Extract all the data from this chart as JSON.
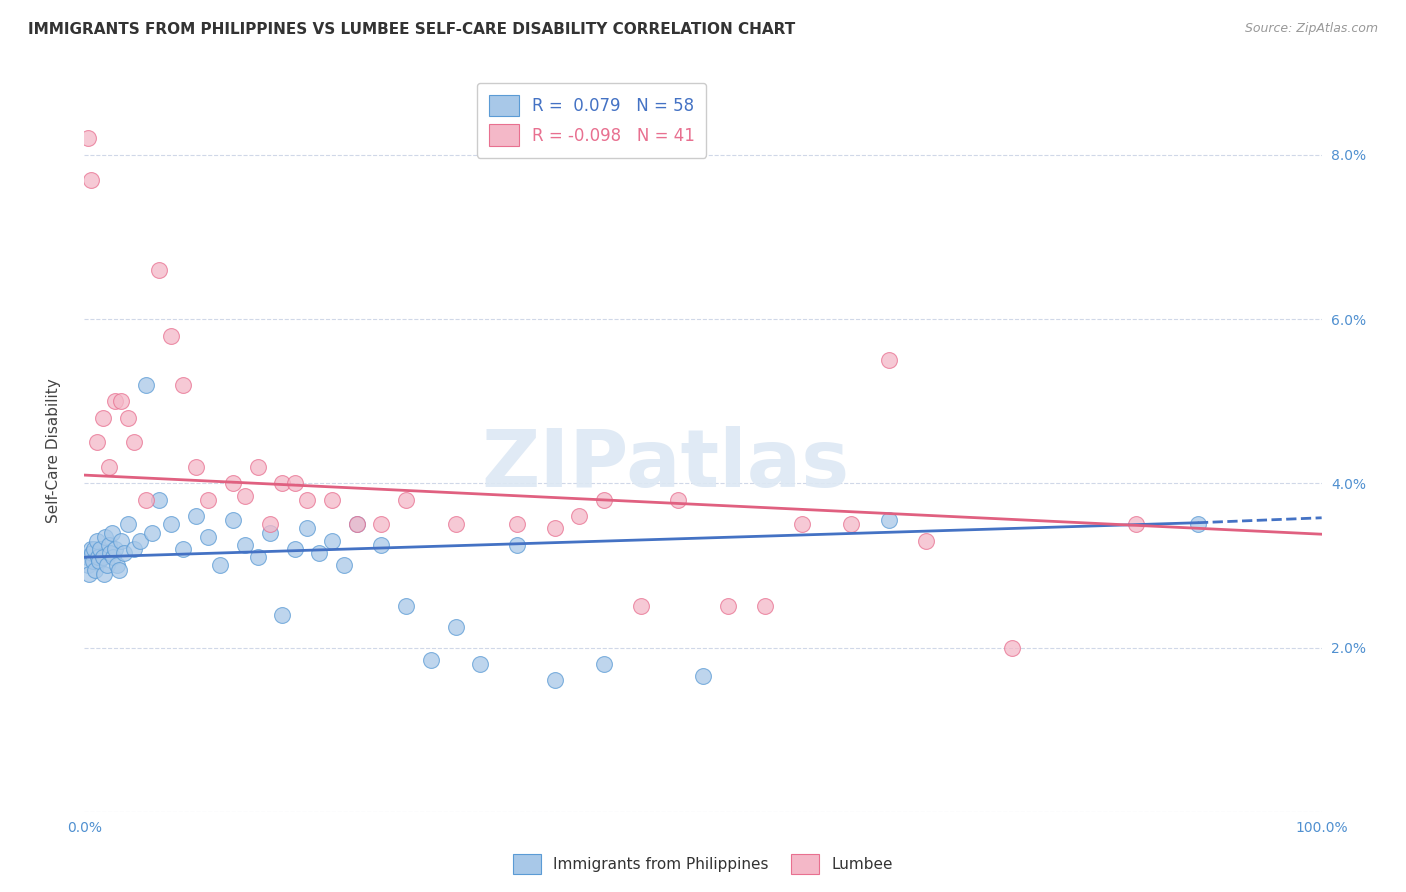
{
  "title": "IMMIGRANTS FROM PHILIPPINES VS LUMBEE SELF-CARE DISABILITY CORRELATION CHART",
  "source": "Source: ZipAtlas.com",
  "ylabel": "Self-Care Disability",
  "blue_color": "#a8c8e8",
  "pink_color": "#f4b8c8",
  "blue_edge_color": "#5b9bd5",
  "pink_edge_color": "#e87090",
  "blue_line_color": "#4472c4",
  "pink_line_color": "#e06080",
  "watermark": "ZIPatlas",
  "blue_r": 0.079,
  "blue_n": 58,
  "pink_r": -0.098,
  "pink_n": 41,
  "philippines_x": [
    0.2,
    0.3,
    0.4,
    0.5,
    0.6,
    0.7,
    0.8,
    0.9,
    1.0,
    1.1,
    1.2,
    1.3,
    1.5,
    1.6,
    1.7,
    1.8,
    2.0,
    2.1,
    2.2,
    2.3,
    2.5,
    2.6,
    2.8,
    3.0,
    3.2,
    3.5,
    4.0,
    4.5,
    5.0,
    5.5,
    6.0,
    7.0,
    8.0,
    9.0,
    10.0,
    11.0,
    12.0,
    13.0,
    14.0,
    15.0,
    16.0,
    17.0,
    18.0,
    19.0,
    20.0,
    21.0,
    22.0,
    24.0,
    26.0,
    28.0,
    30.0,
    32.0,
    35.0,
    38.0,
    42.0,
    50.0,
    65.0,
    90.0
  ],
  "philippines_y": [
    3.1,
    3.0,
    2.9,
    3.2,
    3.15,
    3.05,
    3.2,
    2.95,
    3.3,
    3.1,
    3.05,
    3.2,
    3.1,
    2.9,
    3.35,
    3.0,
    3.25,
    3.15,
    3.4,
    3.1,
    3.2,
    3.0,
    2.95,
    3.3,
    3.15,
    3.5,
    3.2,
    3.3,
    5.2,
    3.4,
    3.8,
    3.5,
    3.2,
    3.6,
    3.35,
    3.0,
    3.55,
    3.25,
    3.1,
    3.4,
    2.4,
    3.2,
    3.45,
    3.15,
    3.3,
    3.0,
    3.5,
    3.25,
    2.5,
    1.85,
    2.25,
    1.8,
    3.25,
    1.6,
    1.8,
    1.65,
    3.55,
    3.5
  ],
  "lumbee_x": [
    0.3,
    0.5,
    1.0,
    1.5,
    2.0,
    2.5,
    3.0,
    3.5,
    4.0,
    5.0,
    6.0,
    7.0,
    8.0,
    9.0,
    10.0,
    12.0,
    13.0,
    14.0,
    15.0,
    16.0,
    17.0,
    18.0,
    20.0,
    22.0,
    24.0,
    26.0,
    30.0,
    35.0,
    38.0,
    40.0,
    42.0,
    45.0,
    48.0,
    52.0,
    55.0,
    58.0,
    62.0,
    65.0,
    68.0,
    75.0,
    85.0
  ],
  "lumbee_y": [
    8.2,
    7.7,
    4.5,
    4.8,
    4.2,
    5.0,
    5.0,
    4.8,
    4.5,
    3.8,
    6.6,
    5.8,
    5.2,
    4.2,
    3.8,
    4.0,
    3.85,
    4.2,
    3.5,
    4.0,
    4.0,
    3.8,
    3.8,
    3.5,
    3.5,
    3.8,
    3.5,
    3.5,
    3.45,
    3.6,
    3.8,
    2.5,
    3.8,
    2.5,
    2.5,
    3.5,
    3.5,
    5.5,
    3.3,
    2.0,
    3.5
  ]
}
